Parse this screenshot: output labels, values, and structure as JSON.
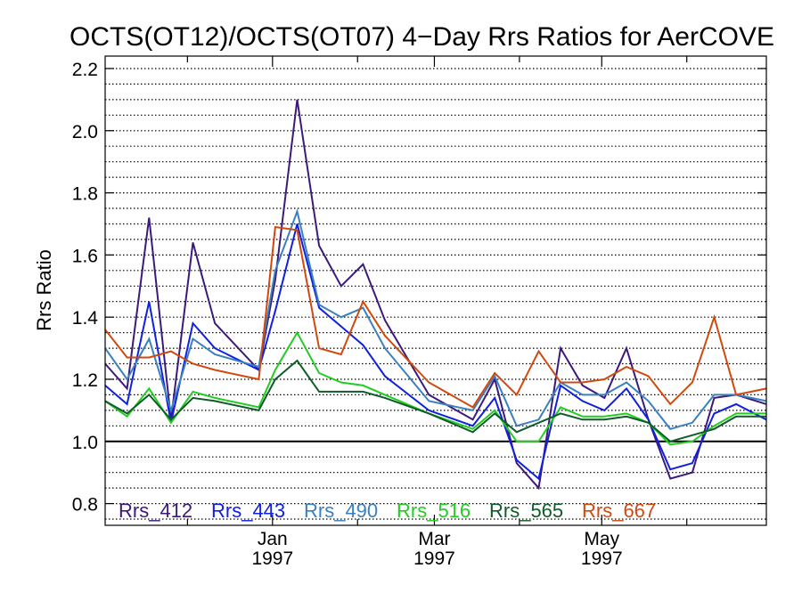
{
  "chart_data": {
    "type": "line",
    "title": "OCTS(OT12)/OCTS(OT07) 4−Day Rrs Ratios for AerCOVE",
    "ylabel": "Rrs Ratio",
    "xlabel": "",
    "ylim": [
      0.73,
      2.24
    ],
    "yticks": [
      0.8,
      1.0,
      1.2,
      1.4,
      1.6,
      1.8,
      2.0,
      2.2
    ],
    "ytick_labels": [
      "0.8",
      "1.0",
      "1.2",
      "1.4",
      "1.6",
      "1.8",
      "2.0",
      "2.2"
    ],
    "xlim": [
      "1996-11-01",
      "1997-06-30"
    ],
    "xticks": [
      {
        "date": "1997-01-01",
        "label_top": "Jan",
        "label_bottom": "1997"
      },
      {
        "date": "1997-03-01",
        "label_top": "Mar",
        "label_bottom": "1997"
      },
      {
        "date": "1997-05-01",
        "label_top": "May",
        "label_bottom": "1997"
      }
    ],
    "minor_xticks": [
      "1996-12-01",
      "1997-02-01",
      "1997-04-01",
      "1997-06-01"
    ],
    "reference_line": 1.0,
    "grid": {
      "y": "dotted",
      "step": 0.05
    },
    "legend_position": "bottom-left",
    "x": [
      "1996-11-01",
      "1996-11-09",
      "1996-11-17",
      "1996-11-25",
      "1996-12-03",
      "1996-12-11",
      "1996-12-27",
      "1997-01-02",
      "1997-01-10",
      "1997-01-18",
      "1997-01-26",
      "1997-02-03",
      "1997-02-11",
      "1997-02-27",
      "1997-03-15",
      "1997-03-23",
      "1997-03-31",
      "1997-04-08",
      "1997-04-16",
      "1997-04-24",
      "1997-05-02",
      "1997-05-10",
      "1997-05-18",
      "1997-05-26",
      "1997-06-03",
      "1997-06-11",
      "1997-06-19",
      "1997-06-30"
    ],
    "series": [
      {
        "name": "Rrs_412",
        "color": "#3c1a7a",
        "values": [
          1.25,
          1.17,
          1.72,
          1.07,
          1.64,
          1.38,
          1.23,
          1.52,
          2.1,
          1.63,
          1.5,
          1.57,
          1.39,
          1.15,
          1.07,
          1.2,
          0.93,
          0.85,
          1.3,
          1.18,
          1.14,
          1.3,
          1.07,
          0.88,
          0.9,
          1.14,
          1.15,
          1.12
        ]
      },
      {
        "name": "Rrs_443",
        "color": "#1020e0",
        "values": [
          1.18,
          1.12,
          1.45,
          1.06,
          1.38,
          1.3,
          1.23,
          1.42,
          1.7,
          1.43,
          1.37,
          1.31,
          1.21,
          1.1,
          1.05,
          1.14,
          0.94,
          0.88,
          1.18,
          1.13,
          1.1,
          1.17,
          1.07,
          0.91,
          0.93,
          1.09,
          1.12,
          1.07
        ]
      },
      {
        "name": "Rrs_490",
        "color": "#3a80c0",
        "values": [
          1.3,
          1.2,
          1.33,
          1.1,
          1.33,
          1.28,
          1.24,
          1.55,
          1.74,
          1.44,
          1.4,
          1.43,
          1.3,
          1.13,
          1.1,
          1.21,
          1.05,
          1.07,
          1.19,
          1.15,
          1.15,
          1.19,
          1.13,
          1.04,
          1.06,
          1.15,
          1.15,
          1.13
        ]
      },
      {
        "name": "Rrs_516",
        "color": "#22cc22",
        "values": [
          1.13,
          1.08,
          1.17,
          1.06,
          1.16,
          1.14,
          1.11,
          1.23,
          1.35,
          1.22,
          1.19,
          1.18,
          1.15,
          1.09,
          1.04,
          1.1,
          1.0,
          1.0,
          1.11,
          1.08,
          1.08,
          1.09,
          1.06,
          0.99,
          1.0,
          1.05,
          1.09,
          1.09
        ]
      },
      {
        "name": "Rrs_565",
        "color": "#105c28",
        "values": [
          1.13,
          1.09,
          1.15,
          1.07,
          1.14,
          1.13,
          1.1,
          1.2,
          1.26,
          1.16,
          1.16,
          1.16,
          1.14,
          1.09,
          1.03,
          1.09,
          1.03,
          1.06,
          1.09,
          1.07,
          1.07,
          1.08,
          1.06,
          1.0,
          1.02,
          1.04,
          1.08,
          1.08
        ]
      },
      {
        "name": "Rrs_667",
        "color": "#d04a10",
        "values": [
          1.36,
          1.27,
          1.27,
          1.29,
          1.25,
          1.23,
          1.2,
          1.69,
          1.68,
          1.3,
          1.28,
          1.45,
          1.34,
          1.19,
          1.11,
          1.22,
          1.15,
          1.29,
          1.19,
          1.19,
          1.2,
          1.24,
          1.21,
          1.12,
          1.19,
          1.4,
          1.15,
          1.17
        ]
      }
    ]
  }
}
